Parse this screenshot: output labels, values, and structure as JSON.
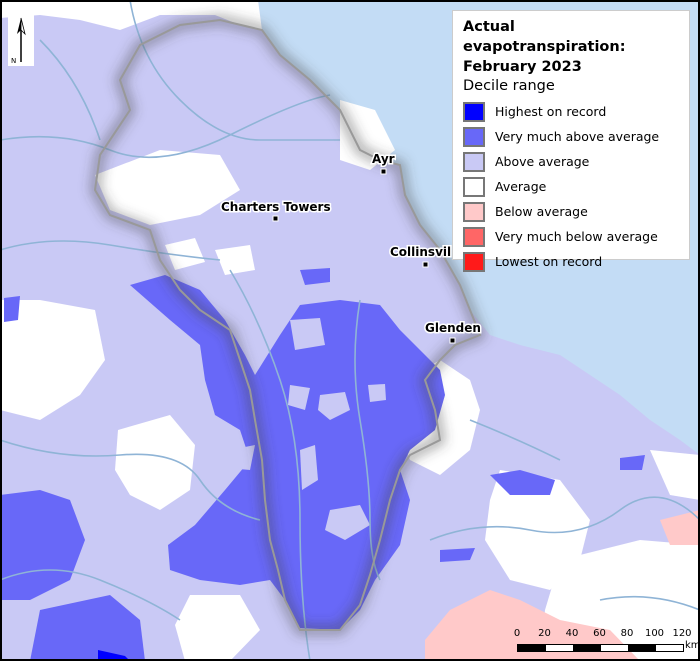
{
  "map": {
    "title_line1": "Actual evapotranspiration:",
    "title_line2": "February 2023",
    "legend_subtitle": "Decile range",
    "legend": [
      {
        "label": "Highest on record",
        "color": "#0000ff"
      },
      {
        "label": "Very much above average",
        "color": "#6868f8"
      },
      {
        "label": "Above average",
        "color": "#c9c9f5"
      },
      {
        "label": "Average",
        "color": "#ffffff"
      },
      {
        "label": "Below average",
        "color": "#ffc9c9"
      },
      {
        "label": "Very much below average",
        "color": "#ff6666"
      },
      {
        "label": "Lowest on record",
        "color": "#ff1a1a"
      }
    ],
    "towns": [
      {
        "name": "Ayr"
      },
      {
        "name": "Charters Towers"
      },
      {
        "name": "Collinsvil"
      },
      {
        "name": "Glenden"
      }
    ],
    "north_label": "N",
    "scale": {
      "ticks": [
        "0",
        "20",
        "40",
        "60",
        "80",
        "100",
        "120"
      ],
      "unit": "km"
    },
    "colors": {
      "sea": "#c3dcf5",
      "river": "#8fb4d6",
      "above": "#c9c9f5",
      "very_above": "#6868f8",
      "below": "#ffc9c9"
    }
  }
}
